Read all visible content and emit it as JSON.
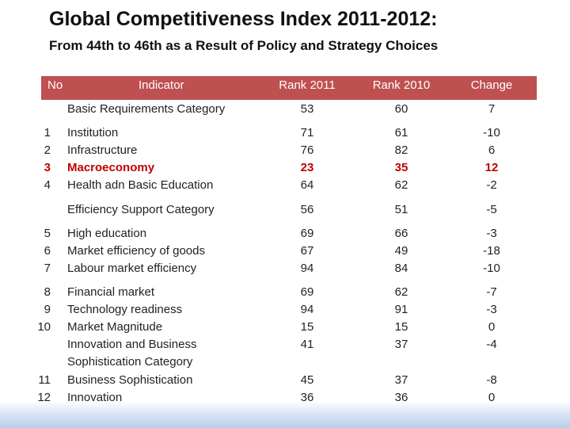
{
  "title": "Global Competitiveness Index 2011-2012:",
  "subtitle": "From 44th to 46th as a Result of Policy and Strategy Choices",
  "header": {
    "no": "No",
    "indicator": "Indicator",
    "rank2011": "Rank 2011",
    "rank2010": "Rank 2010",
    "change": "Change"
  },
  "rows": [
    {
      "no": "",
      "indicator": "Basic Requirements Category",
      "r2011": "53",
      "r2010": "60",
      "change": "7"
    },
    {
      "no": "1",
      "indicator": "Institution",
      "r2011": "71",
      "r2010": "61",
      "change": "-10"
    },
    {
      "no": "2",
      "indicator": "Infrastructure",
      "r2011": "76",
      "r2010": "82",
      "change": "6"
    },
    {
      "no": "3",
      "indicator": "Macroeconomy",
      "r2011": "23",
      "r2010": "35",
      "change": "12",
      "highlight": true
    },
    {
      "no": "4",
      "indicator": "Health adn Basic Education",
      "r2011": "64",
      "r2010": "62",
      "change": "-2"
    },
    {
      "no": "",
      "indicator": "Efficiency Support Category",
      "r2011": "56",
      "r2010": "51",
      "change": "-5"
    },
    {
      "no": "5",
      "indicator": "High education",
      "r2011": "69",
      "r2010": "66",
      "change": "-3"
    },
    {
      "no": "6",
      "indicator": "Market efficiency of goods",
      "r2011": "67",
      "r2010": "49",
      "change": "-18"
    },
    {
      "no": "7",
      "indicator": "Labour market efficiency",
      "r2011": "94",
      "r2010": "84",
      "change": "-10"
    },
    {
      "no": "8",
      "indicator": "Financial market",
      "r2011": "69",
      "r2010": "62",
      "change": "-7"
    },
    {
      "no": "9",
      "indicator": "Technology readiness",
      "r2011": "94",
      "r2010": "91",
      "change": "-3"
    },
    {
      "no": "10",
      "indicator": "Market  Magnitude",
      "r2011": "15",
      "r2010": "15",
      "change": "0"
    },
    {
      "no": "",
      "indicator": "Innovation and Business",
      "r2011": "41",
      "r2010": "37",
      "change": "-4"
    },
    {
      "no": "",
      "indicator": "Sophistication Category",
      "r2011": "",
      "r2010": "",
      "change": ""
    },
    {
      "no": "11",
      "indicator": "Business Sophistication",
      "r2011": "45",
      "r2010": "37",
      "change": "-8"
    },
    {
      "no": "12",
      "indicator": "Innovation",
      "r2011": "36",
      "r2010": "36",
      "change": "0"
    }
  ]
}
